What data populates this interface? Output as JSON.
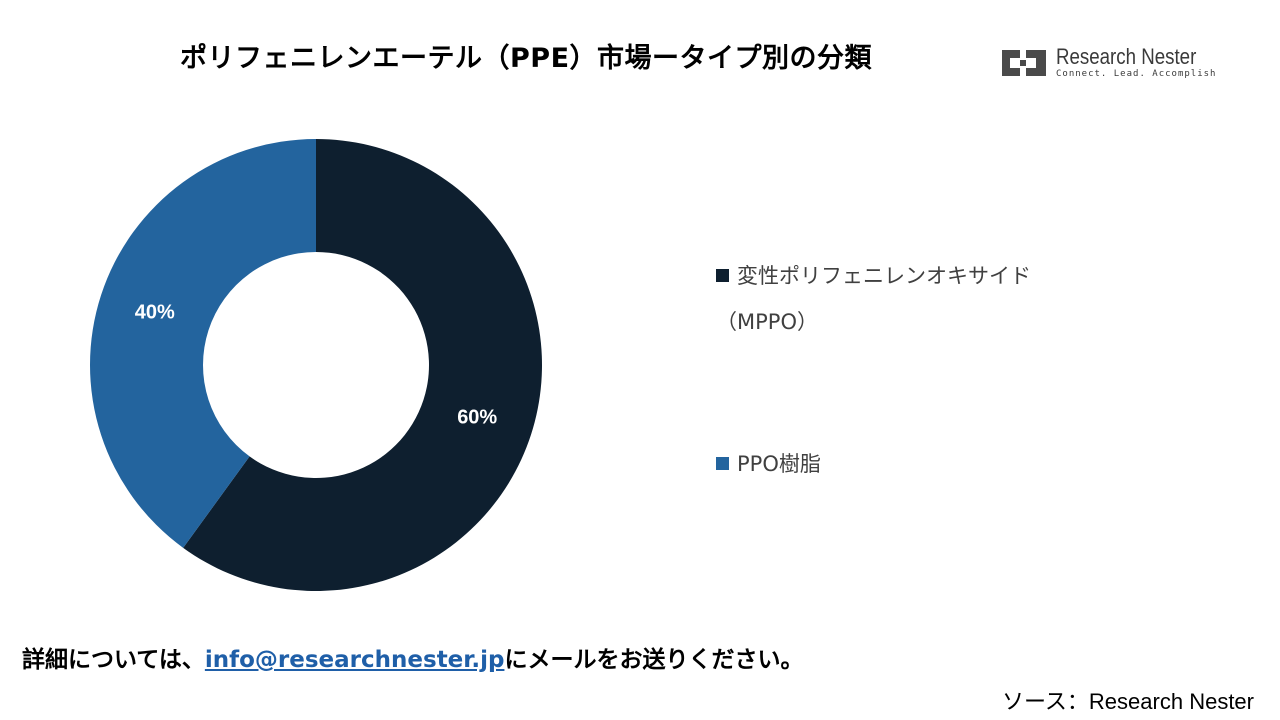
{
  "header": {
    "title": "ポリフェニレンエーテル（PPE）市場ータイプ別の分類"
  },
  "logo": {
    "name": "Research Nester",
    "tagline": "Connect. Lead. Accomplish"
  },
  "chart_data": {
    "type": "pie",
    "donut": true,
    "slices": [
      {
        "label": "変性ポリフェニレンオキサイド（MPPO）",
        "value": 60,
        "display": "60%",
        "color": "#0e1f2f"
      },
      {
        "label": "PPO樹脂",
        "value": 40,
        "display": "40%",
        "color": "#23649e"
      }
    ],
    "legend": {
      "placement": "right",
      "items": [
        {
          "line1": "変性ポリフェニレンオキサイド",
          "line2": "（MPPO）",
          "color": "#0e1f2f"
        },
        {
          "line1": "PPO樹脂",
          "line2": "",
          "color": "#23649e"
        }
      ]
    },
    "label_color": "#ffffff"
  },
  "footer": {
    "contact_prefix": "詳細については、",
    "contact_email": "info@researchnester.jp",
    "contact_suffix": "にメールをお送りください。",
    "source_prefix": "ソース：",
    "source_name": "Research Nester"
  }
}
